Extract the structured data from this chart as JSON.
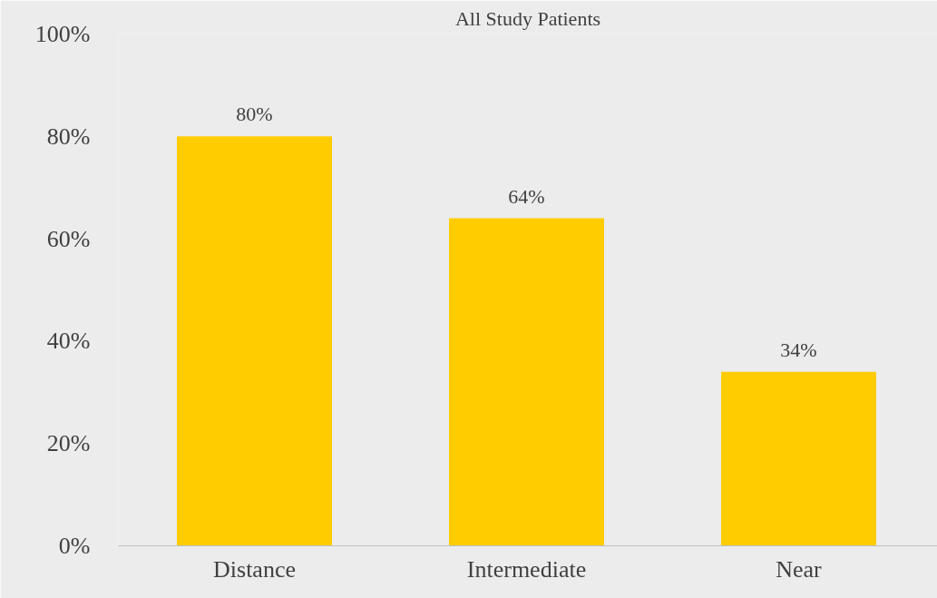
{
  "chart_data": {
    "type": "bar",
    "title": "All Study Patients",
    "categories": [
      "Distance",
      "Intermediate",
      "Near"
    ],
    "values": [
      80,
      64,
      34
    ],
    "value_labels": [
      "80%",
      "64%",
      "34%"
    ],
    "color": "#ffcc00",
    "ylim": [
      0,
      100
    ],
    "yticks": [
      {
        "value": 0,
        "label": "0%"
      },
      {
        "value": 20,
        "label": "20%"
      },
      {
        "value": 40,
        "label": "40%"
      },
      {
        "value": 60,
        "label": "60%"
      },
      {
        "value": 80,
        "label": "80%"
      },
      {
        "value": 100,
        "label": "100%"
      }
    ],
    "grid": false
  }
}
